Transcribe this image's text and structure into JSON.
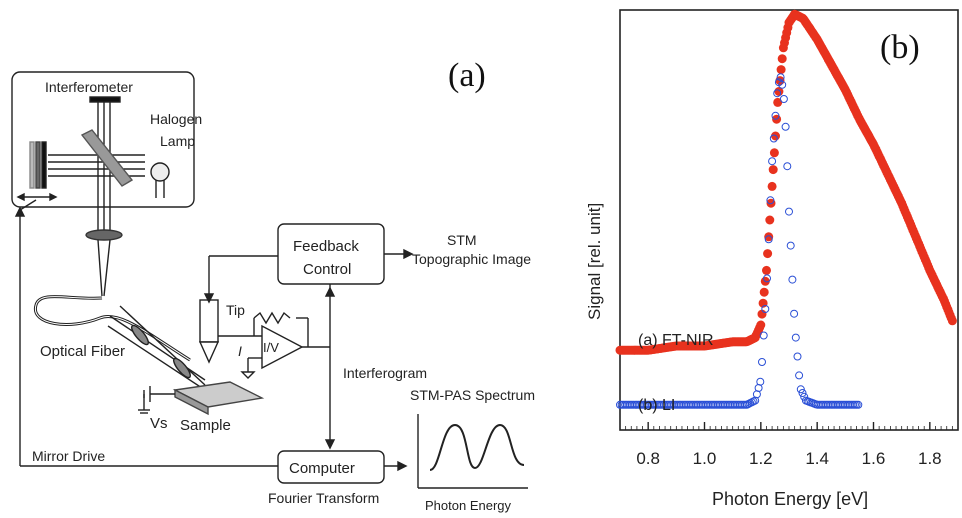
{
  "panel_a": {
    "label": "(a)",
    "interferometer": "Interferometer",
    "halogen": "Halogen",
    "lamp": "Lamp",
    "feedback": "Feedback",
    "control": "Control",
    "stm": "STM",
    "topo": "Topographic Image",
    "tip": "Tip",
    "current": "I",
    "iv": "I/V",
    "optical_fiber": "Optical Fiber",
    "interferogram": "Interferogram",
    "vs": "Vs",
    "sample": "Sample",
    "spectrum_title": "STM-PAS Spectrum",
    "mirror_drive": "Mirror Drive",
    "computer": "Computer",
    "fourier": "Fourier Transform",
    "photon_energy": "Photon Energy"
  },
  "chart_data": {
    "type": "scatter",
    "panel_label": "(b)",
    "xlabel": "Photon Energy [eV]",
    "ylabel": "Signal [rel. unit]",
    "xticks": [
      0.8,
      1.0,
      1.2,
      1.4,
      1.6,
      1.8
    ],
    "xlim": [
      0.7,
      1.9
    ],
    "ylim": [
      0,
      1.0
    ],
    "series": [
      {
        "name": "(a) FT-NIR",
        "color": "#e8321e",
        "x": [
          0.7,
          0.8,
          0.9,
          1.0,
          1.1,
          1.15,
          1.18,
          1.2,
          1.22,
          1.24,
          1.26,
          1.28,
          1.3,
          1.32,
          1.35,
          1.4,
          1.45,
          1.5,
          1.55,
          1.6,
          1.65,
          1.7,
          1.75,
          1.8,
          1.85,
          1.88
        ],
        "y": [
          0.19,
          0.19,
          0.2,
          0.2,
          0.21,
          0.21,
          0.22,
          0.25,
          0.38,
          0.58,
          0.78,
          0.91,
          0.97,
          0.99,
          0.98,
          0.93,
          0.87,
          0.81,
          0.74,
          0.68,
          0.61,
          0.54,
          0.46,
          0.38,
          0.31,
          0.26
        ]
      },
      {
        "name": "(b) LI",
        "color": "#2a4fd6",
        "x": [
          0.7,
          0.8,
          0.9,
          1.0,
          1.1,
          1.15,
          1.18,
          1.2,
          1.22,
          1.24,
          1.26,
          1.27,
          1.28,
          1.29,
          1.3,
          1.32,
          1.34,
          1.36,
          1.4,
          1.45,
          1.5,
          1.55
        ],
        "y": [
          0.06,
          0.06,
          0.06,
          0.06,
          0.06,
          0.06,
          0.07,
          0.12,
          0.33,
          0.64,
          0.82,
          0.84,
          0.81,
          0.7,
          0.52,
          0.25,
          0.1,
          0.07,
          0.06,
          0.06,
          0.06,
          0.06
        ]
      }
    ]
  }
}
